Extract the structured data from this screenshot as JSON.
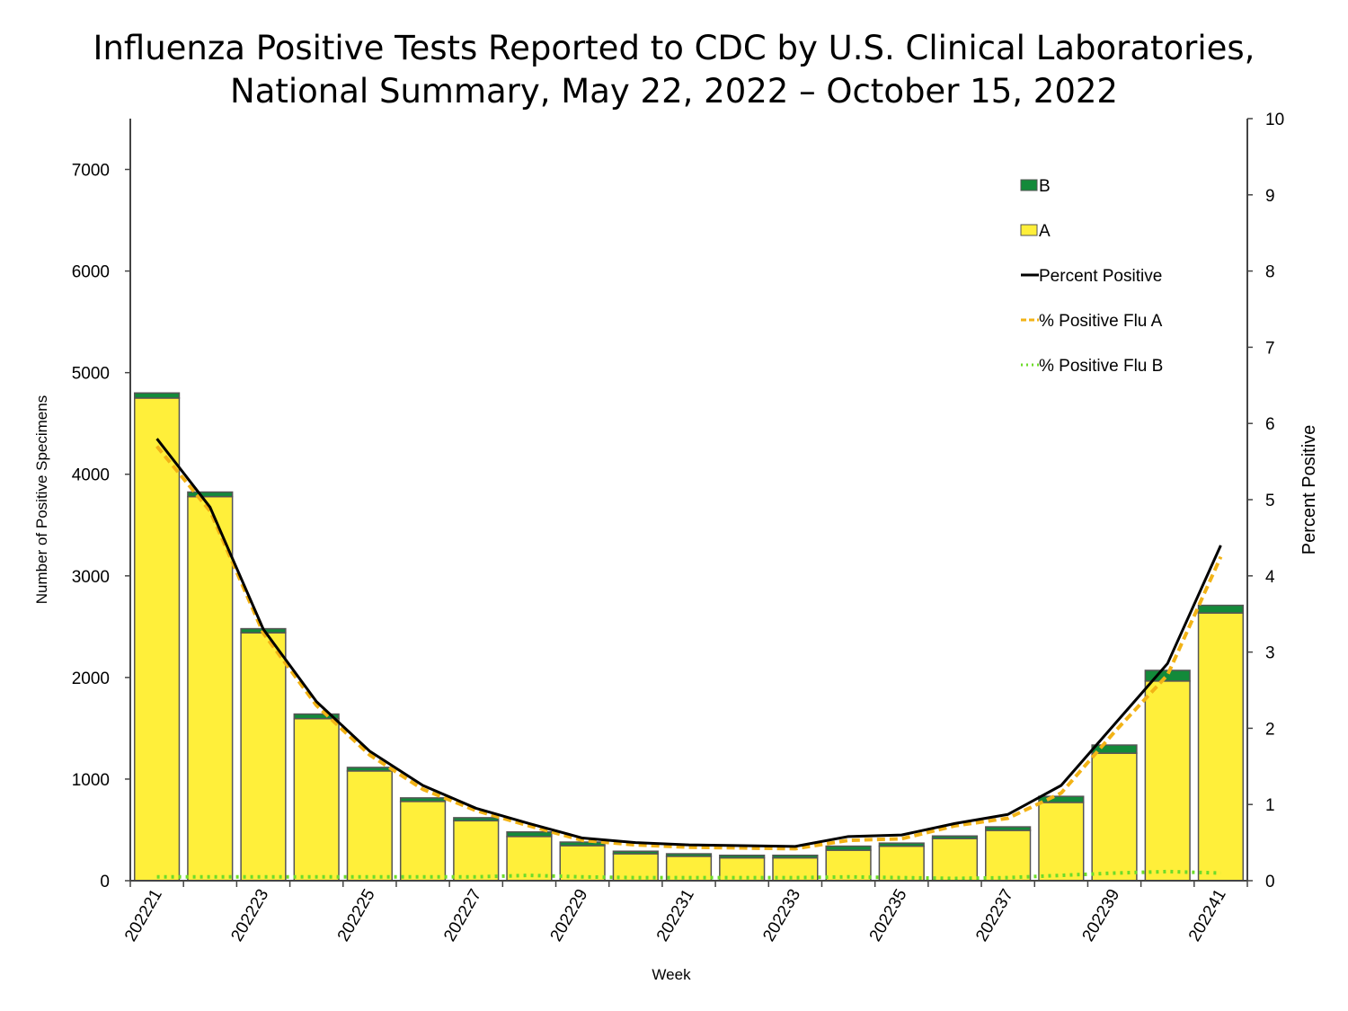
{
  "chart_data": {
    "type": "bar",
    "title_lines": [
      "Influenza Positive Tests Reported to CDC by U.S. Clinical Laboratories,",
      "National Summary, May 22, 2022 – October 15, 2022"
    ],
    "xlabel": "Week",
    "ylabel": "Number of Positive Specimens",
    "y2label": "Percent Positive",
    "ylim": [
      0,
      7500
    ],
    "y2lim": [
      0,
      10
    ],
    "yticks": [
      0,
      1000,
      2000,
      3000,
      4000,
      5000,
      6000,
      7000
    ],
    "y2ticks": [
      0,
      1,
      2,
      3,
      4,
      5,
      6,
      7,
      8,
      9,
      10
    ],
    "categories": [
      "202221",
      "202222",
      "202223",
      "202224",
      "202225",
      "202226",
      "202227",
      "202228",
      "202229",
      "202230",
      "202231",
      "202232",
      "202233",
      "202234",
      "202235",
      "202236",
      "202237",
      "202238",
      "202239",
      "202240",
      "202241"
    ],
    "xtick_labels_shown": [
      "202221",
      "202223",
      "202225",
      "202227",
      "202229",
      "202231",
      "202233",
      "202235",
      "202237",
      "202239",
      "202241"
    ],
    "bar_series": [
      {
        "name": "A",
        "color": "#ffef3a",
        "values": [
          4750,
          3780,
          2440,
          1595,
          1080,
          780,
          590,
          435,
          345,
          265,
          240,
          225,
          225,
          300,
          340,
          415,
          495,
          770,
          1255,
          1965,
          2635
        ]
      },
      {
        "name": "B",
        "color": "#138a3a",
        "values": [
          50,
          45,
          40,
          45,
          35,
          35,
          30,
          45,
          35,
          25,
          25,
          25,
          25,
          40,
          30,
          25,
          35,
          60,
          80,
          105,
          75
        ]
      }
    ],
    "line_series": [
      {
        "name": "Percent Positive",
        "axis": "right",
        "color": "#000000",
        "style": "solid",
        "values": [
          5.8,
          4.9,
          3.3,
          2.35,
          1.7,
          1.25,
          0.95,
          0.75,
          0.56,
          0.5,
          0.47,
          0.46,
          0.45,
          0.58,
          0.6,
          0.75,
          0.87,
          1.25,
          2.05,
          2.85,
          4.4
        ]
      },
      {
        "name": "% Positive Flu A",
        "axis": "right",
        "color": "#f2b316",
        "style": "dashed",
        "values": [
          5.7,
          4.85,
          3.25,
          2.3,
          1.65,
          1.2,
          0.92,
          0.72,
          0.53,
          0.47,
          0.44,
          0.43,
          0.42,
          0.53,
          0.55,
          0.72,
          0.82,
          1.15,
          1.95,
          2.7,
          4.25
        ]
      },
      {
        "name": "% Positive Flu B",
        "axis": "right",
        "color": "#6ddc2a",
        "style": "dotted",
        "values": [
          0.05,
          0.05,
          0.05,
          0.05,
          0.05,
          0.05,
          0.05,
          0.07,
          0.05,
          0.04,
          0.04,
          0.04,
          0.04,
          0.05,
          0.04,
          0.03,
          0.04,
          0.07,
          0.1,
          0.12,
          0.1
        ]
      }
    ],
    "legend": {
      "placement": "top-right",
      "entries": [
        {
          "label": "B",
          "kind": "box",
          "color": "#138a3a"
        },
        {
          "label": "A",
          "kind": "box",
          "color": "#ffef3a"
        },
        {
          "label": "Percent Positive",
          "kind": "line",
          "color": "#000000"
        },
        {
          "label": "% Positive Flu A",
          "kind": "dashed",
          "color": "#f2b316"
        },
        {
          "label": "% Positive Flu B",
          "kind": "dotted",
          "color": "#6ddc2a"
        }
      ]
    },
    "grid": false
  }
}
